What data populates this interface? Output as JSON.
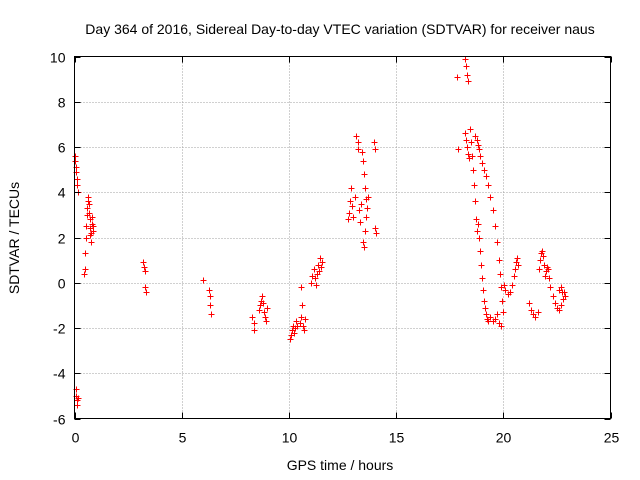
{
  "chart_data": {
    "type": "scatter",
    "title": "Day 364 of 2016, Sidereal Day-to-day VTEC variation (SDTVAR) for receiver naus",
    "xlabel": "GPS time / hours",
    "ylabel": "SDTVAR / TECUs",
    "xlim": [
      0,
      25
    ],
    "ylim": [
      -6,
      10
    ],
    "xticks": [
      0,
      5,
      10,
      15,
      20,
      25
    ],
    "yticks": [
      -6,
      -4,
      -2,
      0,
      2,
      4,
      6,
      8,
      10
    ],
    "xtick_labels": [
      "0",
      "5",
      "10",
      "15",
      "20",
      "25"
    ],
    "ytick_labels": [
      "-6",
      "-4",
      "-2",
      "0",
      "2",
      "4",
      "6",
      "8",
      "10"
    ],
    "grid": true,
    "marker": "plus",
    "color": "#ff0000",
    "series": [
      {
        "name": "SDTVAR",
        "points": [
          [
            0.02,
            5.6
          ],
          [
            0.04,
            5.4
          ],
          [
            0.06,
            5.1
          ],
          [
            0.08,
            4.9
          ],
          [
            0.1,
            4.6
          ],
          [
            0.12,
            4.3
          ],
          [
            0.14,
            4.0
          ],
          [
            0.05,
            -4.7
          ],
          [
            0.08,
            -5.0
          ],
          [
            0.1,
            -5.2
          ],
          [
            0.13,
            -5.4
          ],
          [
            0.16,
            -5.1
          ],
          [
            0.45,
            0.4
          ],
          [
            0.48,
            0.6
          ],
          [
            0.5,
            1.3
          ],
          [
            0.52,
            2.0
          ],
          [
            0.55,
            2.5
          ],
          [
            0.57,
            3.0
          ],
          [
            0.6,
            3.3
          ],
          [
            0.62,
            3.6
          ],
          [
            0.64,
            3.8
          ],
          [
            0.66,
            3.5
          ],
          [
            0.68,
            3.1
          ],
          [
            0.7,
            2.8
          ],
          [
            0.72,
            2.4
          ],
          [
            0.74,
            2.1
          ],
          [
            0.76,
            1.8
          ],
          [
            0.78,
            2.2
          ],
          [
            0.8,
            2.6
          ],
          [
            0.82,
            2.9
          ],
          [
            0.84,
            2.5
          ],
          [
            0.86,
            2.3
          ],
          [
            3.2,
            0.9
          ],
          [
            3.25,
            0.7
          ],
          [
            3.28,
            0.5
          ],
          [
            3.3,
            -0.2
          ],
          [
            3.32,
            -0.4
          ],
          [
            6.0,
            0.1
          ],
          [
            6.25,
            -0.3
          ],
          [
            6.3,
            -0.6
          ],
          [
            6.32,
            -1.0
          ],
          [
            6.35,
            -1.4
          ],
          [
            8.3,
            -1.5
          ],
          [
            8.35,
            -1.8
          ],
          [
            8.38,
            -2.1
          ],
          [
            8.6,
            -1.2
          ],
          [
            8.65,
            -1.0
          ],
          [
            8.7,
            -0.8
          ],
          [
            8.75,
            -0.6
          ],
          [
            8.8,
            -0.9
          ],
          [
            8.85,
            -1.3
          ],
          [
            8.9,
            -1.5
          ],
          [
            8.95,
            -1.7
          ],
          [
            9.0,
            -1.1
          ],
          [
            10.05,
            -2.5
          ],
          [
            10.1,
            -2.3
          ],
          [
            10.15,
            -2.1
          ],
          [
            10.2,
            -1.9
          ],
          [
            10.25,
            -2.2
          ],
          [
            10.3,
            -2.0
          ],
          [
            10.35,
            -1.7
          ],
          [
            10.4,
            -1.9
          ],
          [
            10.5,
            -1.8
          ],
          [
            10.55,
            -1.5
          ],
          [
            10.58,
            -0.2
          ],
          [
            10.62,
            -1.0
          ],
          [
            10.65,
            -1.9
          ],
          [
            10.7,
            -2.1
          ],
          [
            10.75,
            -1.6
          ],
          [
            11.05,
            0.0
          ],
          [
            11.1,
            0.3
          ],
          [
            11.15,
            0.6
          ],
          [
            11.2,
            0.2
          ],
          [
            11.25,
            -0.1
          ],
          [
            11.3,
            0.4
          ],
          [
            11.35,
            0.8
          ],
          [
            11.4,
            0.5
          ],
          [
            11.45,
            1.1
          ],
          [
            11.5,
            0.7
          ],
          [
            11.55,
            0.9
          ],
          [
            12.75,
            2.8
          ],
          [
            12.8,
            3.1
          ],
          [
            12.85,
            3.6
          ],
          [
            12.9,
            4.2
          ],
          [
            12.95,
            3.4
          ],
          [
            13.0,
            2.9
          ],
          [
            13.1,
            3.8
          ],
          [
            13.15,
            6.5
          ],
          [
            13.2,
            6.2
          ],
          [
            13.22,
            5.9
          ],
          [
            13.25,
            3.2
          ],
          [
            13.3,
            2.7
          ],
          [
            13.35,
            3.5
          ],
          [
            13.4,
            5.8
          ],
          [
            13.45,
            5.4
          ],
          [
            13.5,
            4.8
          ],
          [
            13.55,
            4.2
          ],
          [
            13.6,
            3.7
          ],
          [
            13.45,
            1.8
          ],
          [
            13.5,
            1.6
          ],
          [
            13.55,
            2.3
          ],
          [
            13.6,
            2.9
          ],
          [
            13.65,
            3.3
          ],
          [
            13.7,
            3.8
          ],
          [
            13.95,
            6.2
          ],
          [
            14.0,
            5.9
          ],
          [
            14.02,
            2.4
          ],
          [
            14.05,
            2.2
          ],
          [
            17.85,
            9.1
          ],
          [
            17.9,
            5.9
          ],
          [
            18.2,
            9.9
          ],
          [
            18.25,
            9.6
          ],
          [
            18.3,
            9.2
          ],
          [
            18.35,
            8.9
          ],
          [
            18.2,
            6.6
          ],
          [
            18.25,
            6.3
          ],
          [
            18.3,
            6.0
          ],
          [
            18.35,
            5.7
          ],
          [
            18.4,
            5.5
          ],
          [
            18.45,
            6.8
          ],
          [
            18.5,
            6.2
          ],
          [
            18.55,
            5.6
          ],
          [
            18.6,
            5.0
          ],
          [
            18.65,
            4.3
          ],
          [
            18.7,
            3.6
          ],
          [
            18.72,
            2.8
          ],
          [
            18.75,
            2.3
          ],
          [
            18.8,
            2.6
          ],
          [
            18.85,
            2.0
          ],
          [
            18.9,
            1.4
          ],
          [
            18.95,
            0.8
          ],
          [
            19.0,
            0.2
          ],
          [
            19.05,
            -0.3
          ],
          [
            19.1,
            -0.8
          ],
          [
            19.15,
            -1.1
          ],
          [
            19.2,
            -1.4
          ],
          [
            19.25,
            -1.6
          ],
          [
            19.3,
            -1.7
          ],
          [
            18.7,
            6.5
          ],
          [
            18.75,
            6.3
          ],
          [
            18.8,
            6.1
          ],
          [
            18.85,
            5.9
          ],
          [
            18.9,
            5.6
          ],
          [
            19.0,
            5.3
          ],
          [
            19.1,
            5.0
          ],
          [
            19.2,
            4.7
          ],
          [
            19.3,
            4.3
          ],
          [
            19.4,
            3.8
          ],
          [
            19.5,
            3.2
          ],
          [
            19.6,
            2.5
          ],
          [
            19.7,
            1.8
          ],
          [
            19.8,
            1.0
          ],
          [
            19.85,
            0.4
          ],
          [
            19.9,
            -0.2
          ],
          [
            19.95,
            -0.8
          ],
          [
            20.0,
            -1.3
          ],
          [
            19.4,
            -1.5
          ],
          [
            19.5,
            -1.7
          ],
          [
            19.6,
            -1.6
          ],
          [
            19.7,
            -1.4
          ],
          [
            19.8,
            -1.8
          ],
          [
            19.9,
            -1.9
          ],
          [
            20.05,
            -0.1
          ],
          [
            20.1,
            -0.3
          ],
          [
            20.2,
            -0.5
          ],
          [
            20.3,
            -0.4
          ],
          [
            20.4,
            -0.1
          ],
          [
            20.5,
            0.3
          ],
          [
            20.55,
            0.6
          ],
          [
            20.6,
            0.9
          ],
          [
            20.65,
            1.1
          ],
          [
            20.7,
            0.8
          ],
          [
            21.2,
            -0.9
          ],
          [
            21.3,
            -1.2
          ],
          [
            21.4,
            -1.4
          ],
          [
            21.5,
            -1.5
          ],
          [
            21.6,
            -1.3
          ],
          [
            21.65,
            0.6
          ],
          [
            21.7,
            1.0
          ],
          [
            21.75,
            1.3
          ],
          [
            21.8,
            1.4
          ],
          [
            21.85,
            1.2
          ],
          [
            21.9,
            0.8
          ],
          [
            21.95,
            0.3
          ],
          [
            22.0,
            0.5
          ],
          [
            22.05,
            0.7
          ],
          [
            22.1,
            0.6
          ],
          [
            22.15,
            0.2
          ],
          [
            22.2,
            -0.2
          ],
          [
            22.3,
            -0.6
          ],
          [
            22.4,
            -0.9
          ],
          [
            22.5,
            -1.1
          ],
          [
            22.6,
            -1.2
          ],
          [
            22.7,
            -1.0
          ],
          [
            22.8,
            -0.7
          ],
          [
            22.85,
            -0.4
          ],
          [
            22.6,
            -0.3
          ],
          [
            22.7,
            -0.2
          ],
          [
            22.75,
            -0.4
          ],
          [
            22.9,
            -0.6
          ]
        ]
      }
    ]
  }
}
